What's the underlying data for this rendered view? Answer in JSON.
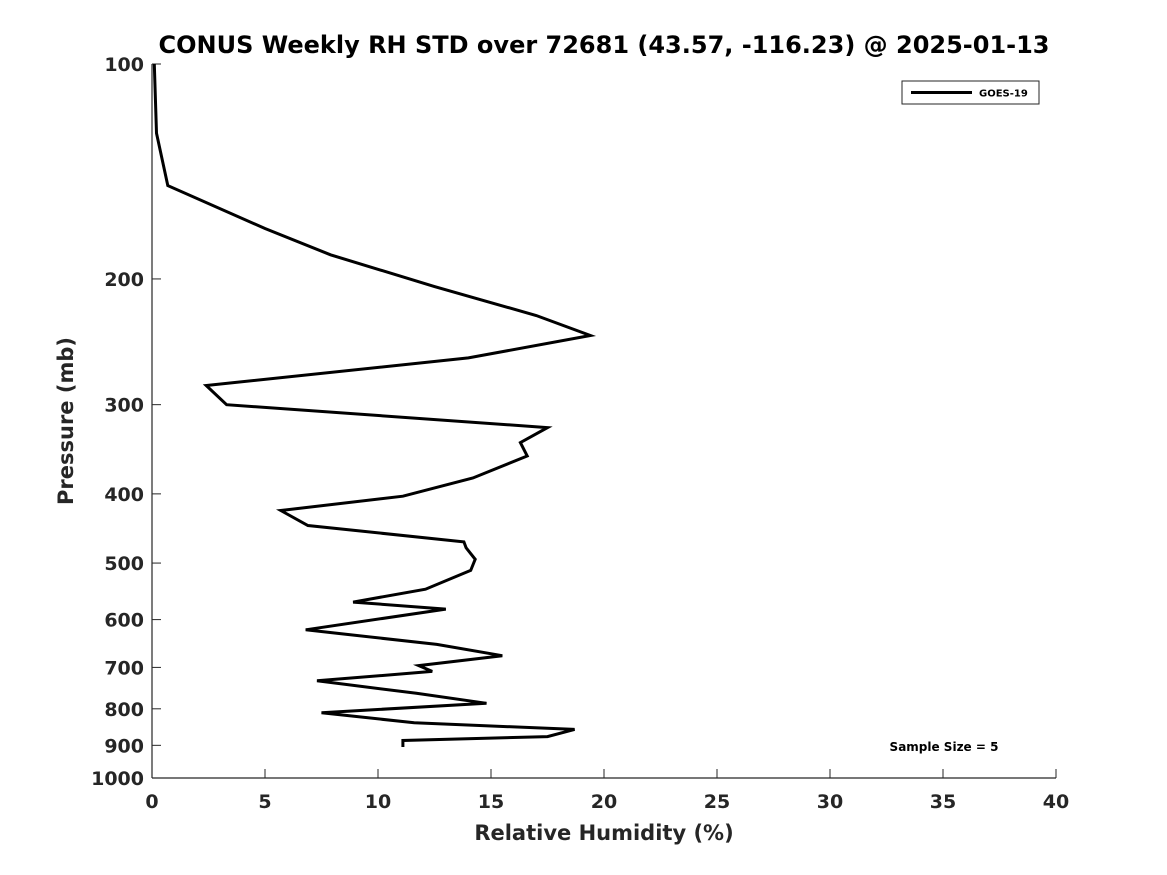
{
  "chart_data": {
    "type": "line",
    "title": "CONUS Weekly RH STD over 72681 (43.57, -116.23) @ 2025-01-13",
    "xlabel": "Relative Humidity (%)",
    "ylabel": "Pressure (mb)",
    "xlim": [
      0,
      40
    ],
    "ylim": [
      100,
      1000
    ],
    "y_scale": "log",
    "y_reversed": true,
    "xticks": [
      0,
      5,
      10,
      15,
      20,
      25,
      30,
      35,
      40
    ],
    "yticks": [
      100,
      200,
      300,
      400,
      500,
      600,
      700,
      800,
      900,
      1000
    ],
    "grid": false,
    "legend_position": "top-right",
    "annotation": "Sample Size = 5",
    "series": [
      {
        "name": "GOES-19",
        "color": "#000000",
        "x": [
          0.1,
          0.2,
          0.7,
          5.0,
          7.9,
          12.5,
          17.0,
          19.4,
          14.0,
          2.4,
          3.3,
          17.5,
          16.3,
          16.6,
          14.2,
          11.1,
          5.7,
          6.9,
          13.8,
          13.9,
          14.3,
          14.1,
          12.1,
          8.9,
          13.0,
          6.8,
          12.6,
          15.5,
          11.8,
          12.4,
          7.3,
          11.7,
          14.8,
          7.5,
          11.6,
          18.7,
          17.5,
          11.1,
          11.1
        ],
        "y": [
          100,
          125,
          148,
          170,
          185,
          205,
          225,
          240,
          258,
          282,
          300,
          323,
          339,
          354,
          380,
          403,
          422,
          443,
          467,
          476,
          494,
          512,
          544,
          567,
          580,
          620,
          650,
          674,
          696,
          709,
          731,
          761,
          786,
          810,
          837,
          855,
          875,
          886,
          905
        ]
      }
    ]
  }
}
